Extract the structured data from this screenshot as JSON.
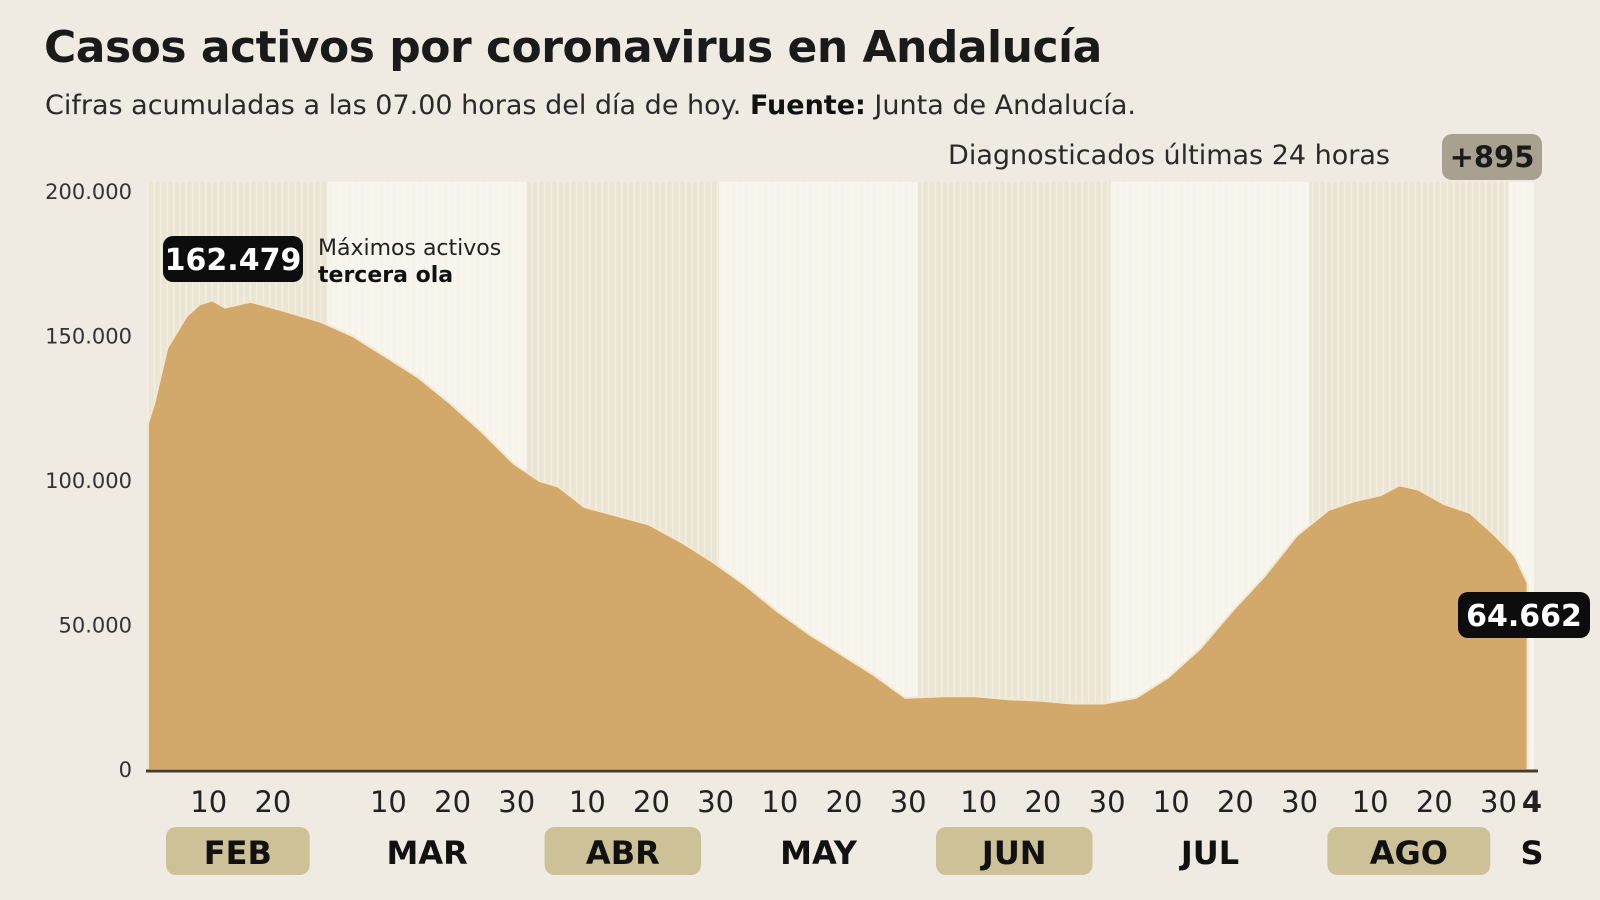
{
  "title": "Casos activos por coronavirus en Andalucía",
  "subtitle": {
    "text": "Cifras acumuladas a las 07.00 horas del día de hoy.",
    "source_label": "Fuente:",
    "source": "Junta de Andalucía."
  },
  "diagnosed": {
    "label": "Diagnosticados últimas 24 horas",
    "value": "+895"
  },
  "colors": {
    "background": "#efebe2",
    "area": "#d2a86b",
    "band_dark": "#ebe5d4",
    "band_light": "#f7f4ec",
    "pill": "#cdc197",
    "label_box": "#0d0d0d"
  },
  "chart_data": {
    "type": "area",
    "title": "Casos activos por coronavirus en Andalucía",
    "xlabel": "",
    "ylabel": "",
    "ylim": [
      0,
      200000
    ],
    "xlim": [
      "2021-02-01",
      "2021-09-04"
    ],
    "grid": false,
    "y_ticks": [
      {
        "value": 0,
        "label": "0"
      },
      {
        "value": 50000,
        "label": "50.000"
      },
      {
        "value": 100000,
        "label": "100.000"
      },
      {
        "value": 150000,
        "label": "150.000"
      },
      {
        "value": 200000,
        "label": "200.000"
      }
    ],
    "x_ticks": [
      {
        "date": "2021-02-10",
        "label": "10"
      },
      {
        "date": "2021-02-20",
        "label": "20"
      },
      {
        "date": "2021-03-10",
        "label": "10"
      },
      {
        "date": "2021-03-20",
        "label": "20"
      },
      {
        "date": "2021-03-30",
        "label": "30"
      },
      {
        "date": "2021-04-10",
        "label": "10"
      },
      {
        "date": "2021-04-20",
        "label": "20"
      },
      {
        "date": "2021-04-30",
        "label": "30"
      },
      {
        "date": "2021-05-10",
        "label": "10"
      },
      {
        "date": "2021-05-20",
        "label": "20"
      },
      {
        "date": "2021-05-30",
        "label": "30"
      },
      {
        "date": "2021-06-10",
        "label": "10"
      },
      {
        "date": "2021-06-20",
        "label": "20"
      },
      {
        "date": "2021-06-30",
        "label": "30"
      },
      {
        "date": "2021-07-10",
        "label": "10"
      },
      {
        "date": "2021-07-20",
        "label": "20"
      },
      {
        "date": "2021-07-30",
        "label": "30"
      },
      {
        "date": "2021-08-10",
        "label": "10"
      },
      {
        "date": "2021-08-20",
        "label": "20"
      },
      {
        "date": "2021-08-30",
        "label": "30"
      },
      {
        "date": "2021-09-04",
        "label": "4",
        "bold": true
      }
    ],
    "months": [
      {
        "label": "FEB",
        "start": "2021-02-01",
        "end": "2021-03-01",
        "highlight": true
      },
      {
        "label": "MAR",
        "start": "2021-03-01",
        "end": "2021-04-01",
        "highlight": false
      },
      {
        "label": "ABR",
        "start": "2021-04-01",
        "end": "2021-05-01",
        "highlight": true
      },
      {
        "label": "MAY",
        "start": "2021-05-01",
        "end": "2021-06-01",
        "highlight": false
      },
      {
        "label": "JUN",
        "start": "2021-06-01",
        "end": "2021-07-01",
        "highlight": true
      },
      {
        "label": "JUL",
        "start": "2021-07-01",
        "end": "2021-08-01",
        "highlight": false
      },
      {
        "label": "AGO",
        "start": "2021-08-01",
        "end": "2021-09-01",
        "highlight": true
      },
      {
        "label": "S",
        "start": "2021-09-01",
        "end": "2021-09-05",
        "highlight": false
      }
    ],
    "series": [
      {
        "x": [
          "2021-02-01",
          "2021-02-02",
          "2021-02-04",
          "2021-02-07",
          "2021-02-09",
          "2021-02-11",
          "2021-02-13",
          "2021-02-17",
          "2021-02-22",
          "2021-02-28",
          "2021-03-05",
          "2021-03-10",
          "2021-03-15",
          "2021-03-20",
          "2021-03-25",
          "2021-03-30",
          "2021-04-03",
          "2021-04-06",
          "2021-04-10",
          "2021-04-15",
          "2021-04-20",
          "2021-04-25",
          "2021-04-30",
          "2021-05-05",
          "2021-05-10",
          "2021-05-15",
          "2021-05-20",
          "2021-05-25",
          "2021-05-30",
          "2021-06-05",
          "2021-06-10",
          "2021-06-15",
          "2021-06-20",
          "2021-06-25",
          "2021-06-30",
          "2021-07-05",
          "2021-07-10",
          "2021-07-15",
          "2021-07-20",
          "2021-07-25",
          "2021-07-30",
          "2021-08-04",
          "2021-08-08",
          "2021-08-12",
          "2021-08-15",
          "2021-08-18",
          "2021-08-22",
          "2021-08-26",
          "2021-08-30",
          "2021-09-02",
          "2021-09-04"
        ],
        "values": [
          120000,
          127000,
          146000,
          157000,
          161000,
          162479,
          160000,
          162000,
          159000,
          155000,
          150000,
          143000,
          136000,
          127000,
          117000,
          106000,
          100000,
          98000,
          91000,
          88000,
          85000,
          79000,
          72000,
          64000,
          55000,
          47000,
          40000,
          33000,
          25000,
          25500,
          25500,
          24500,
          24000,
          23000,
          23000,
          25000,
          32000,
          42000,
          55000,
          67000,
          81000,
          90000,
          93000,
          95000,
          98500,
          97000,
          92000,
          89000,
          81000,
          74000,
          64662
        ]
      }
    ],
    "annotations": [
      {
        "value_label": "162.479",
        "text_line1": "Máximos activos",
        "text_line2": "tercera ola"
      },
      {
        "value_label": "64.662"
      }
    ]
  }
}
